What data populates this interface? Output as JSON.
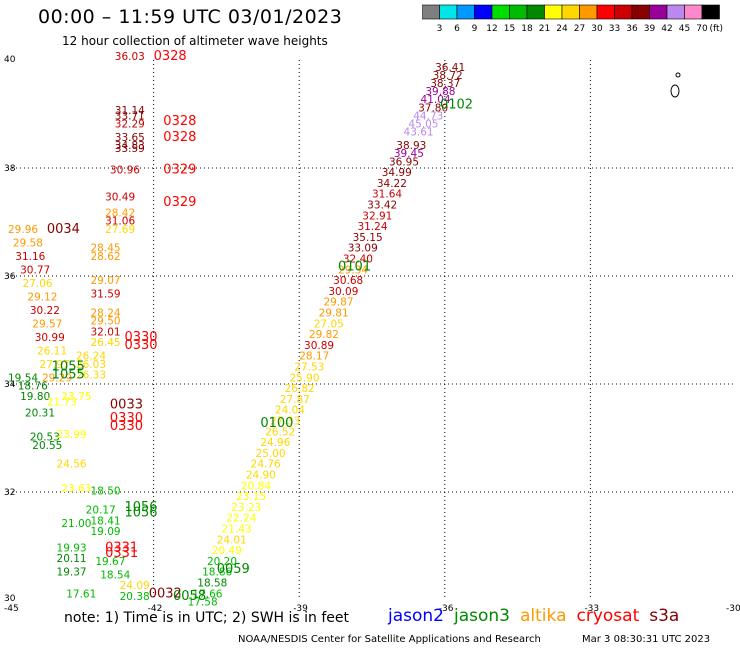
{
  "title": "00:00 – 11:59 UTC 03/01/2023",
  "subtitle": "12 hour collection of altimeter wave heights",
  "colorbar": {
    "unit": "(ft)",
    "labels": [
      "3",
      "6",
      "9",
      "12",
      "15",
      "18",
      "21",
      "24",
      "27",
      "30",
      "33",
      "36",
      "39",
      "42",
      "45",
      "70"
    ],
    "colors": [
      "#7f7f7f",
      "#00e5e5",
      "#0099ff",
      "#0000ff",
      "#00dd00",
      "#00bb00",
      "#008800",
      "#ffff00",
      "#ffd700",
      "#ff9900",
      "#ff0000",
      "#cc0000",
      "#880000",
      "#990099",
      "#bb88ee",
      "#ff88cc",
      "#000000"
    ]
  },
  "axes": {
    "x_ticks": [
      "-45",
      "-42",
      "-39",
      "-36",
      "-33",
      "-30"
    ],
    "y_ticks": [
      "40",
      "38",
      "36",
      "34",
      "32",
      "30"
    ]
  },
  "note": "note: 1) Time is in UTC; 2) SWH is in feet",
  "satellites": [
    {
      "name": "jason2",
      "color": "#0000ff"
    },
    {
      "name": "jason3",
      "color": "#008800"
    },
    {
      "name": "altika",
      "color": "#ff9900"
    },
    {
      "name": "cryosat",
      "color": "#ff0000"
    },
    {
      "name": "s3a",
      "color": "#880000"
    }
  ],
  "footer_left": "NOAA/NESDIS Center for Satellite Applications and Research",
  "footer_right": "Mar  3 08:30:31 UTC 2023",
  "time_labels": [
    {
      "text": "0328",
      "lon": -42.0,
      "lat": 40.0,
      "color": "#ff0000"
    },
    {
      "text": "0328",
      "lon": -41.8,
      "lat": 38.8,
      "color": "#ff0000"
    },
    {
      "text": "0328",
      "lon": -41.8,
      "lat": 38.5,
      "color": "#ff0000"
    },
    {
      "text": "0329",
      "lon": -41.8,
      "lat": 37.9,
      "color": "#ff0000"
    },
    {
      "text": "0329",
      "lon": -41.8,
      "lat": 37.3,
      "color": "#ff0000"
    },
    {
      "text": "0034",
      "lon": -44.2,
      "lat": 36.8,
      "color": "#880000"
    },
    {
      "text": "0330",
      "lon": -42.6,
      "lat": 34.8,
      "color": "#ff0000"
    },
    {
      "text": "0330",
      "lon": -42.6,
      "lat": 34.65,
      "color": "#ff0000"
    },
    {
      "text": "1055",
      "lon": -44.1,
      "lat": 34.25,
      "color": "#008800"
    },
    {
      "text": "1055",
      "lon": -44.1,
      "lat": 34.1,
      "color": "#008800"
    },
    {
      "text": "0033",
      "lon": -42.9,
      "lat": 33.55,
      "color": "#880000"
    },
    {
      "text": "0330",
      "lon": -42.9,
      "lat": 33.3,
      "color": "#ff0000"
    },
    {
      "text": "0330",
      "lon": -42.9,
      "lat": 33.15,
      "color": "#ff0000"
    },
    {
      "text": "1056",
      "lon": -42.6,
      "lat": 31.65,
      "color": "#008800"
    },
    {
      "text": "1056",
      "lon": -42.6,
      "lat": 31.55,
      "color": "#008800"
    },
    {
      "text": "0331",
      "lon": -43.0,
      "lat": 30.9,
      "color": "#ff0000"
    },
    {
      "text": "0331",
      "lon": -43.0,
      "lat": 30.8,
      "color": "#ff0000"
    },
    {
      "text": "0032",
      "lon": -42.1,
      "lat": 30.05,
      "color": "#880000"
    },
    {
      "text": "0058",
      "lon": -41.6,
      "lat": 30.0,
      "color": "#008800"
    },
    {
      "text": "0059",
      "lon": -40.7,
      "lat": 30.5,
      "color": "#008800"
    },
    {
      "text": "0100",
      "lon": -39.8,
      "lat": 33.2,
      "color": "#008800"
    },
    {
      "text": "0101",
      "lon": -38.2,
      "lat": 36.1,
      "color": "#008800"
    },
    {
      "text": "0102",
      "lon": -36.1,
      "lat": 39.1,
      "color": "#008800"
    }
  ],
  "values": [
    {
      "t": "36.41",
      "lon": -36.2,
      "lat": 39.8,
      "c": "#880000"
    },
    {
      "t": "38.72",
      "lon": -36.25,
      "lat": 39.65,
      "c": "#880000"
    },
    {
      "t": "38.37",
      "lon": -36.3,
      "lat": 39.5,
      "c": "#880000"
    },
    {
      "t": "39.88",
      "lon": -36.4,
      "lat": 39.35,
      "c": "#990099"
    },
    {
      "t": "41.04",
      "lon": -36.5,
      "lat": 39.2,
      "c": "#990099"
    },
    {
      "t": "37.80",
      "lon": -36.55,
      "lat": 39.05,
      "c": "#880000"
    },
    {
      "t": "44.73",
      "lon": -36.65,
      "lat": 38.9,
      "c": "#bb88ee"
    },
    {
      "t": "45.05",
      "lon": -36.75,
      "lat": 38.75,
      "c": "#bb88ee"
    },
    {
      "t": "43.61",
      "lon": -36.85,
      "lat": 38.6,
      "c": "#bb88ee"
    },
    {
      "t": "38.93",
      "lon": -37.0,
      "lat": 38.35,
      "c": "#880000"
    },
    {
      "t": "39.45",
      "lon": -37.05,
      "lat": 38.2,
      "c": "#990099"
    },
    {
      "t": "36.95",
      "lon": -37.15,
      "lat": 38.05,
      "c": "#880000"
    },
    {
      "t": "34.99",
      "lon": -37.3,
      "lat": 37.85,
      "c": "#880000"
    },
    {
      "t": "34.22",
      "lon": -37.4,
      "lat": 37.65,
      "c": "#880000"
    },
    {
      "t": "31.64",
      "lon": -37.5,
      "lat": 37.45,
      "c": "#cc0000"
    },
    {
      "t": "33.42",
      "lon": -37.6,
      "lat": 37.25,
      "c": "#880000"
    },
    {
      "t": "32.91",
      "lon": -37.7,
      "lat": 37.05,
      "c": "#cc0000"
    },
    {
      "t": "31.24",
      "lon": -37.8,
      "lat": 36.85,
      "c": "#cc0000"
    },
    {
      "t": "35.15",
      "lon": -37.9,
      "lat": 36.65,
      "c": "#880000"
    },
    {
      "t": "33.09",
      "lon": -38.0,
      "lat": 36.45,
      "c": "#880000"
    },
    {
      "t": "32.40",
      "lon": -38.1,
      "lat": 36.25,
      "c": "#cc0000"
    },
    {
      "t": "29.34",
      "lon": -38.2,
      "lat": 36.05,
      "c": "#ff9900"
    },
    {
      "t": "30.68",
      "lon": -38.3,
      "lat": 35.85,
      "c": "#cc0000"
    },
    {
      "t": "30.09",
      "lon": -38.4,
      "lat": 35.65,
      "c": "#cc0000"
    },
    {
      "t": "29.87",
      "lon": -38.5,
      "lat": 35.45,
      "c": "#ff9900"
    },
    {
      "t": "29.81",
      "lon": -38.6,
      "lat": 35.25,
      "c": "#ff9900"
    },
    {
      "t": "27.05",
      "lon": -38.7,
      "lat": 35.05,
      "c": "#ffd700"
    },
    {
      "t": "29.82",
      "lon": -38.8,
      "lat": 34.85,
      "c": "#ff9900"
    },
    {
      "t": "30.89",
      "lon": -38.9,
      "lat": 34.65,
      "c": "#cc0000"
    },
    {
      "t": "28.17",
      "lon": -39.0,
      "lat": 34.45,
      "c": "#ff9900"
    },
    {
      "t": "27.53",
      "lon": -39.1,
      "lat": 34.25,
      "c": "#ffd700"
    },
    {
      "t": "25.90",
      "lon": -39.2,
      "lat": 34.05,
      "c": "#ffd700"
    },
    {
      "t": "26.82",
      "lon": -39.3,
      "lat": 33.85,
      "c": "#ffd700"
    },
    {
      "t": "27.87",
      "lon": -39.4,
      "lat": 33.65,
      "c": "#ffd700"
    },
    {
      "t": "24.04",
      "lon": -39.5,
      "lat": 33.45,
      "c": "#ffd700"
    },
    {
      "t": "27.33",
      "lon": -39.6,
      "lat": 33.25,
      "c": "#ffd700"
    },
    {
      "t": "26.52",
      "lon": -39.7,
      "lat": 33.05,
      "c": "#ffd700"
    },
    {
      "t": "24.96",
      "lon": -39.8,
      "lat": 32.85,
      "c": "#ffd700"
    },
    {
      "t": "25.00",
      "lon": -39.9,
      "lat": 32.65,
      "c": "#ffd700"
    },
    {
      "t": "24.76",
      "lon": -40.0,
      "lat": 32.45,
      "c": "#ffd700"
    },
    {
      "t": "24.90",
      "lon": -40.1,
      "lat": 32.25,
      "c": "#ffd700"
    },
    {
      "t": "20.84",
      "lon": -40.2,
      "lat": 32.05,
      "c": "#ffff00"
    },
    {
      "t": "23.15",
      "lon": -40.3,
      "lat": 31.85,
      "c": "#ffff00"
    },
    {
      "t": "23.23",
      "lon": -40.4,
      "lat": 31.65,
      "c": "#ffff00"
    },
    {
      "t": "22.24",
      "lon": -40.5,
      "lat": 31.45,
      "c": "#ffff00"
    },
    {
      "t": "21.43",
      "lon": -40.6,
      "lat": 31.25,
      "c": "#ffff00"
    },
    {
      "t": "24.01",
      "lon": -40.7,
      "lat": 31.05,
      "c": "#ffd700"
    },
    {
      "t": "20.49",
      "lon": -40.8,
      "lat": 30.85,
      "c": "#ffff00"
    },
    {
      "t": "20.20",
      "lon": -40.9,
      "lat": 30.65,
      "c": "#00bb00"
    },
    {
      "t": "18.86",
      "lon": -41.0,
      "lat": 30.45,
      "c": "#00bb00"
    },
    {
      "t": "18.58",
      "lon": -41.1,
      "lat": 30.25,
      "c": "#008800"
    },
    {
      "t": "17.66",
      "lon": -41.2,
      "lat": 30.05,
      "c": "#00bb00"
    },
    {
      "t": "17.58",
      "lon": -41.3,
      "lat": 29.9,
      "c": "#00bb00"
    },
    {
      "t": "36.03",
      "lon": -42.8,
      "lat": 40.0,
      "c": "#cc0000"
    },
    {
      "t": "31.14",
      "lon": -42.8,
      "lat": 39.0,
      "c": "#880000"
    },
    {
      "t": "33.71",
      "lon": -42.8,
      "lat": 38.9,
      "c": "#880000"
    },
    {
      "t": "32.29",
      "lon": -42.8,
      "lat": 38.75,
      "c": "#cc0000"
    },
    {
      "t": "33.65",
      "lon": -42.8,
      "lat": 38.5,
      "c": "#880000"
    },
    {
      "t": "34.83",
      "lon": -42.8,
      "lat": 38.35,
      "c": "#880000"
    },
    {
      "t": "33.59",
      "lon": -42.8,
      "lat": 38.3,
      "c": "#880000"
    },
    {
      "t": "30.96",
      "lon": -42.9,
      "lat": 37.9,
      "c": "#cc0000"
    },
    {
      "t": "30.49",
      "lon": -43.0,
      "lat": 37.4,
      "c": "#cc0000"
    },
    {
      "t": "28.42",
      "lon": -43.0,
      "lat": 37.1,
      "c": "#ff9900"
    },
    {
      "t": "31.06",
      "lon": -43.0,
      "lat": 36.95,
      "c": "#cc0000"
    },
    {
      "t": "27.69",
      "lon": -43.0,
      "lat": 36.8,
      "c": "#ffd700"
    },
    {
      "t": "29.96",
      "lon": -45.0,
      "lat": 36.8,
      "c": "#ff9900"
    },
    {
      "t": "29.58",
      "lon": -44.9,
      "lat": 36.55,
      "c": "#ff9900"
    },
    {
      "t": "31.16",
      "lon": -44.85,
      "lat": 36.3,
      "c": "#cc0000"
    },
    {
      "t": "30.77",
      "lon": -44.75,
      "lat": 36.05,
      "c": "#cc0000"
    },
    {
      "t": "27.06",
      "lon": -44.7,
      "lat": 35.8,
      "c": "#ffd700"
    },
    {
      "t": "29.12",
      "lon": -44.6,
      "lat": 35.55,
      "c": "#ff9900"
    },
    {
      "t": "30.22",
      "lon": -44.55,
      "lat": 35.3,
      "c": "#cc0000"
    },
    {
      "t": "29.57",
      "lon": -44.5,
      "lat": 35.05,
      "c": "#ff9900"
    },
    {
      "t": "30.99",
      "lon": -44.45,
      "lat": 34.8,
      "c": "#cc0000"
    },
    {
      "t": "26.11",
      "lon": -44.4,
      "lat": 34.55,
      "c": "#ffd700"
    },
    {
      "t": "27.97",
      "lon": -44.35,
      "lat": 34.3,
      "c": "#ffd700"
    },
    {
      "t": "29.29",
      "lon": -44.3,
      "lat": 34.05,
      "c": "#ff9900"
    },
    {
      "t": "28.45",
      "lon": -43.3,
      "lat": 36.45,
      "c": "#ff9900"
    },
    {
      "t": "28.62",
      "lon": -43.3,
      "lat": 36.3,
      "c": "#ff9900"
    },
    {
      "t": "29.07",
      "lon": -43.3,
      "lat": 35.85,
      "c": "#ff9900"
    },
    {
      "t": "31.59",
      "lon": -43.3,
      "lat": 35.6,
      "c": "#cc0000"
    },
    {
      "t": "28.24",
      "lon": -43.3,
      "lat": 35.25,
      "c": "#ff9900"
    },
    {
      "t": "29.50",
      "lon": -43.3,
      "lat": 35.1,
      "c": "#ff9900"
    },
    {
      "t": "32.01",
      "lon": -43.3,
      "lat": 34.9,
      "c": "#cc0000"
    },
    {
      "t": "26.45",
      "lon": -43.3,
      "lat": 34.7,
      "c": "#ffd700"
    },
    {
      "t": "26.24",
      "lon": -43.6,
      "lat": 34.45,
      "c": "#ffd700"
    },
    {
      "t": "26.03",
      "lon": -43.6,
      "lat": 34.3,
      "c": "#ffd700"
    },
    {
      "t": "26.33",
      "lon": -43.6,
      "lat": 34.1,
      "c": "#ffd700"
    },
    {
      "t": "19.54",
      "lon": -45.0,
      "lat": 34.05,
      "c": "#008800"
    },
    {
      "t": "18.76",
      "lon": -44.8,
      "lat": 33.9,
      "c": "#008800"
    },
    {
      "t": "19.80",
      "lon": -44.75,
      "lat": 33.7,
      "c": "#008800"
    },
    {
      "t": "20.31",
      "lon": -44.65,
      "lat": 33.4,
      "c": "#008800"
    },
    {
      "t": "20.53",
      "lon": -44.55,
      "lat": 32.95,
      "c": "#008800"
    },
    {
      "t": "20.55",
      "lon": -44.5,
      "lat": 32.8,
      "c": "#008800"
    },
    {
      "t": "23.75",
      "lon": -43.9,
      "lat": 33.7,
      "c": "#ffff00"
    },
    {
      "t": "21.73",
      "lon": -44.2,
      "lat": 33.6,
      "c": "#ffff00"
    },
    {
      "t": "23.99",
      "lon": -44.0,
      "lat": 33.0,
      "c": "#ffff00"
    },
    {
      "t": "24.56",
      "lon": -44.0,
      "lat": 32.45,
      "c": "#ffd700"
    },
    {
      "t": "23.63",
      "lon": -43.9,
      "lat": 32.0,
      "c": "#ffff00"
    },
    {
      "t": "18.50",
      "lon": -43.3,
      "lat": 31.95,
      "c": "#00bb00"
    },
    {
      "t": "20.17",
      "lon": -43.4,
      "lat": 31.6,
      "c": "#00bb00"
    },
    {
      "t": "18.41",
      "lon": -43.3,
      "lat": 31.4,
      "c": "#00bb00"
    },
    {
      "t": "21.00",
      "lon": -43.9,
      "lat": 31.35,
      "c": "#00bb00"
    },
    {
      "t": "19.09",
      "lon": -43.3,
      "lat": 31.2,
      "c": "#00bb00"
    },
    {
      "t": "19.93",
      "lon": -44.0,
      "lat": 30.9,
      "c": "#00bb00"
    },
    {
      "t": "20.11",
      "lon": -44.0,
      "lat": 30.7,
      "c": "#008800"
    },
    {
      "t": "19.67",
      "lon": -43.2,
      "lat": 30.65,
      "c": "#00bb00"
    },
    {
      "t": "19.37",
      "lon": -44.0,
      "lat": 30.45,
      "c": "#008800"
    },
    {
      "t": "18.54",
      "lon": -43.1,
      "lat": 30.4,
      "c": "#00bb00"
    },
    {
      "t": "24.09",
      "lon": -42.7,
      "lat": 30.2,
      "c": "#ffd700"
    },
    {
      "t": "17.61",
      "lon": -43.8,
      "lat": 30.05,
      "c": "#00bb00"
    },
    {
      "t": "20.38",
      "lon": -42.7,
      "lat": 30.0,
      "c": "#00bb00"
    }
  ]
}
